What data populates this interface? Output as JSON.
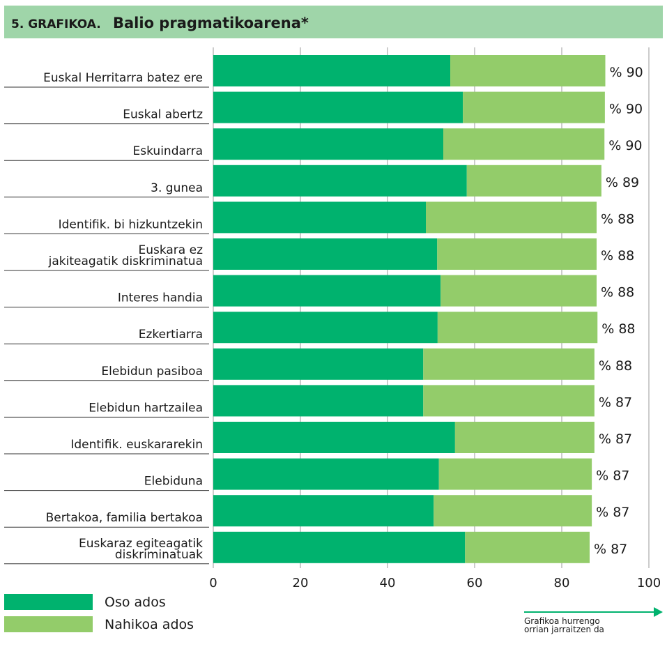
{
  "chart_data": {
    "type": "stacked-barh",
    "title_prefix": "5. GRAFIKOA.",
    "title": "Balio pragmatikoarena*",
    "categories": [
      "Euskal Herritarra batez ere",
      "Euskal abertz",
      "Eskuindarra",
      "3. gunea",
      "Identifik. bi hizkuntzekin",
      "Euskara ez\njakiteagatik diskriminatua",
      "Interes handia",
      "Ezkertiarra",
      "Elebidun pasiboa",
      "Elebidun hartzailea",
      "Identifik. euskararekin",
      "Elebiduna",
      "Bertakoa, familia bertakoa",
      "Euskaraz egiteagatik\ndiskriminatuak"
    ],
    "series": [
      {
        "name": "Oso ados",
        "color": "#00b26e",
        "values": [
          54.4,
          57.3,
          52.8,
          58.2,
          48.8,
          51.4,
          52.2,
          51.5,
          48.2,
          48.2,
          55.5,
          51.8,
          50.6,
          57.8
        ]
      },
      {
        "name": "Nahikoa ados",
        "color": "#93cc6a",
        "values": [
          35.6,
          32.6,
          37.0,
          30.9,
          39.2,
          36.6,
          35.8,
          36.7,
          39.3,
          39.3,
          32.0,
          35.1,
          36.3,
          28.6
        ]
      }
    ],
    "totals": [
      90,
      90,
      90,
      89,
      88,
      88,
      88,
      88,
      88,
      87,
      87,
      87,
      87,
      87
    ],
    "total_labels": [
      "% 90",
      "% 90",
      "% 90",
      "% 89",
      "% 88",
      "% 88",
      "% 88",
      "% 88",
      "% 88",
      "% 87",
      "% 87",
      "% 87",
      "% 87",
      "% 87"
    ],
    "xlim": [
      0,
      100
    ],
    "xticks": [
      0,
      20,
      40,
      60,
      80,
      100
    ],
    "grid": true,
    "footer_note": [
      "Grafikoa hurrengo",
      "orrian jarraitzen da"
    ]
  }
}
